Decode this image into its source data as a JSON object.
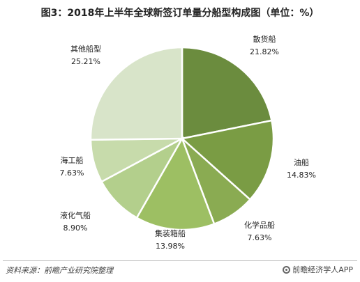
{
  "chart_data": {
    "type": "pie",
    "title": "图3：2018年上半年全球新签订单量分船型构成图（单位：%）",
    "slices": [
      {
        "label": "散货船",
        "value": 21.82,
        "value_text": "21.82%",
        "color": "#6b8c3e"
      },
      {
        "label": "油船",
        "value": 14.83,
        "value_text": "14.83%",
        "color": "#7a9c44"
      },
      {
        "label": "化学品船",
        "value": 7.63,
        "value_text": "7.63%",
        "color": "#8aab52"
      },
      {
        "label": "集装箱船",
        "value": 13.98,
        "value_text": "13.98%",
        "color": "#9dbf63"
      },
      {
        "label": "液化气船",
        "value": 8.9,
        "value_text": "8.90%",
        "color": "#b3cf8c"
      },
      {
        "label": "海工船",
        "value": 7.63,
        "value_text": "7.63%",
        "color": "#c7dbab"
      },
      {
        "label": "其他船型",
        "value": 25.21,
        "value_text": "25.21%",
        "color": "#d8e4c9"
      }
    ],
    "start_angle_deg": 0,
    "direction": "clockwise"
  },
  "footer": {
    "source": "资料来源：前瞻产业研究院整理",
    "brand": "前瞻经济学人APP"
  }
}
